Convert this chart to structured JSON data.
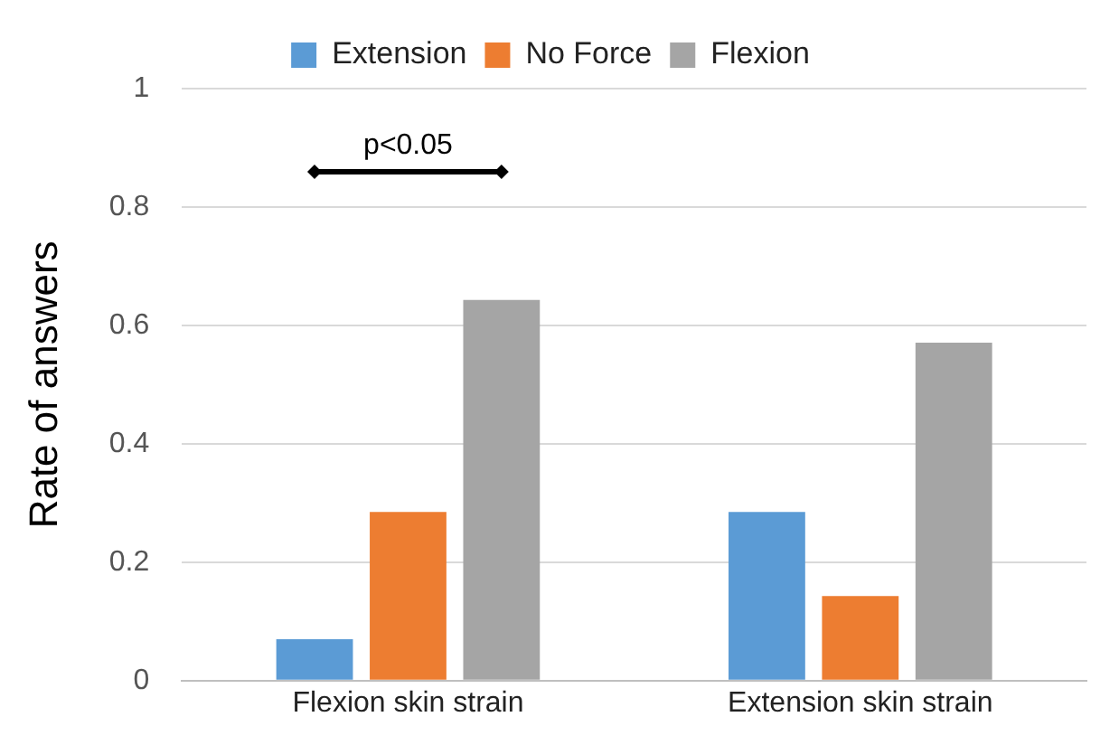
{
  "chart_data": {
    "type": "bar",
    "ylabel": "Rate of answers",
    "categories": [
      "Flexion skin strain",
      "Extension skin strain"
    ],
    "series": [
      {
        "name": "Extension",
        "color": "#5b9bd5",
        "values": [
          0.07,
          0.285
        ]
      },
      {
        "name": "No Force",
        "color": "#ed7d31",
        "values": [
          0.285,
          0.143
        ]
      },
      {
        "name": "Flexion",
        "color": "#a5a5a5",
        "values": [
          0.643,
          0.571
        ]
      }
    ],
    "ylim": [
      0,
      1
    ],
    "yticks": [
      0,
      0.2,
      0.4,
      0.6,
      0.8,
      1
    ],
    "grid": "y",
    "legend": "top",
    "annotations": [
      "p<0.05"
    ]
  }
}
